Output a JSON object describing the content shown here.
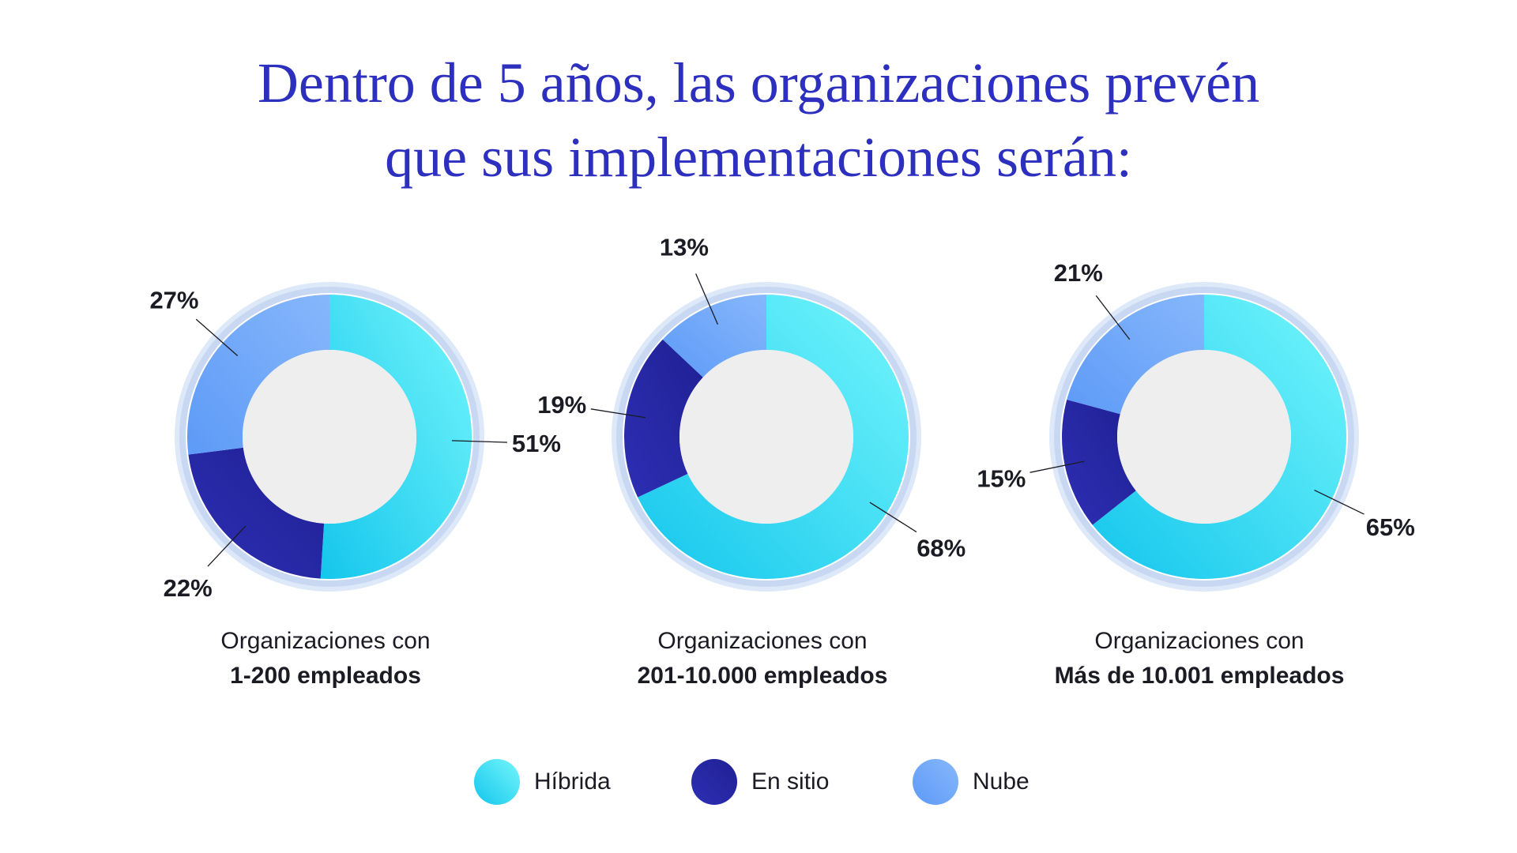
{
  "title": {
    "line1": "Dentro de 5 años, las organizaciones prevén",
    "line2": "que sus implementaciones serán:"
  },
  "colors": {
    "title": "#2d30bf",
    "hibrida": "#4fe2f5",
    "en_sitio": "#2527a8",
    "nube": "#6aa4f8",
    "hole": "#eeeeee",
    "ring": "#dfe8f8"
  },
  "chart_data": [
    {
      "type": "pie",
      "donut": true,
      "caption_line1": "Organizaciones con",
      "caption_line2": "1-200 empleados",
      "categories": [
        "Híbrida",
        "En sitio",
        "Nube"
      ],
      "values": [
        51,
        22,
        27
      ],
      "labels": [
        "51%",
        "22%",
        "27%"
      ]
    },
    {
      "type": "pie",
      "donut": true,
      "caption_line1": "Organizaciones con",
      "caption_line2": "201-10.000 empleados",
      "categories": [
        "Híbrida",
        "En sitio",
        "Nube"
      ],
      "values": [
        68,
        19,
        13
      ],
      "labels": [
        "68%",
        "19%",
        "13%"
      ]
    },
    {
      "type": "pie",
      "donut": true,
      "caption_line1": "Organizaciones con",
      "caption_line2": "Más de 10.001 empleados",
      "categories": [
        "Híbrida",
        "En sitio",
        "Nube"
      ],
      "values": [
        65,
        15,
        21
      ],
      "labels": [
        "65%",
        "15%",
        "21%"
      ]
    }
  ],
  "legend": [
    {
      "label": "Híbrida",
      "color_key": "hibrida"
    },
    {
      "label": "En sitio",
      "color_key": "en_sitio"
    },
    {
      "label": "Nube",
      "color_key": "nube"
    }
  ]
}
